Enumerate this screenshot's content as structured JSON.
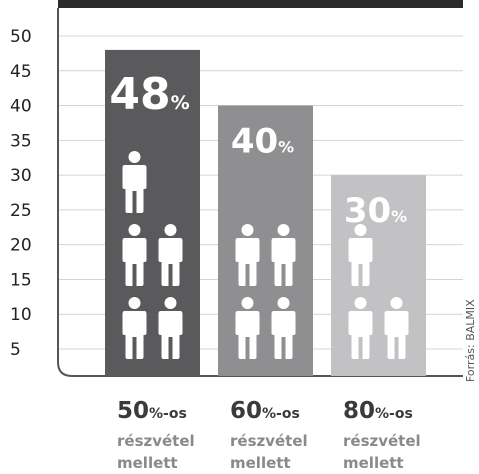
{
  "chart_data": {
    "type": "bar",
    "categories": [
      "50%-os részvétel mellett",
      "60%-os részvétel mellett",
      "80%-os részvétel mellett"
    ],
    "category_parts": [
      {
        "num": "50",
        "pct": "%",
        "suffix": "-os",
        "line2": "részvétel",
        "line3": "mellett"
      },
      {
        "num": "60",
        "pct": "%",
        "suffix": "-os",
        "line2": "részvétel",
        "line3": "mellett"
      },
      {
        "num": "80",
        "pct": "%",
        "suffix": "-os",
        "line2": "részvétel",
        "line3": "mellett"
      }
    ],
    "values": [
      48,
      40,
      30
    ],
    "value_labels": [
      {
        "num": "48",
        "pct": "%"
      },
      {
        "num": "40",
        "pct": "%"
      },
      {
        "num": "30",
        "pct": "%"
      }
    ],
    "people_counts": [
      5,
      4,
      3
    ],
    "yticks": [
      5,
      10,
      15,
      20,
      25,
      30,
      35,
      40,
      45,
      50
    ],
    "ylim": [
      0,
      52
    ],
    "grid": true,
    "colors": [
      "#5a5a5c",
      "#8f8f91",
      "#c2c2c4"
    ],
    "source": "Forrás: BALMIX"
  }
}
